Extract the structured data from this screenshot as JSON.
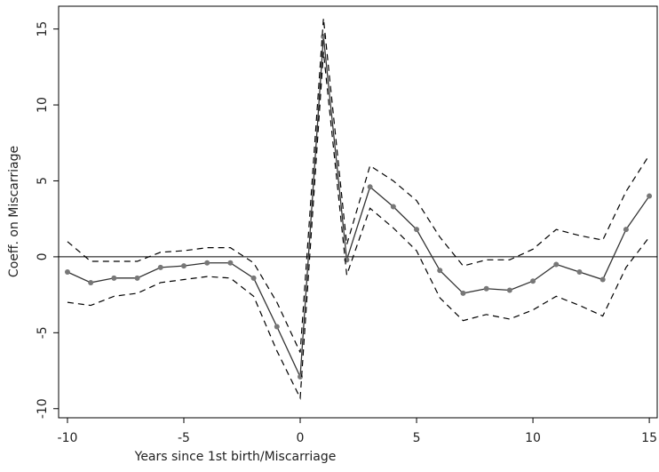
{
  "chart_data": {
    "type": "line",
    "xlabel": "Years since 1st birth/Miscarriage",
    "ylabel": "Coeff. on Miscarriage",
    "x": [
      -10,
      -9,
      -8,
      -7,
      -6,
      -5,
      -4,
      -3,
      -2,
      -1,
      0,
      1,
      2,
      3,
      4,
      5,
      6,
      7,
      8,
      9,
      10,
      11,
      12,
      13,
      14,
      15
    ],
    "series": [
      {
        "color": "#333333",
        "dash": false,
        "markers": true,
        "marker_color": "#777777",
        "values": [
          -1.0,
          -1.7,
          -1.4,
          -1.4,
          -0.7,
          -0.6,
          -0.4,
          -0.4,
          -1.4,
          -4.6,
          -7.9,
          14.5,
          -0.2,
          4.6,
          3.3,
          1.8,
          -0.9,
          -2.4,
          -2.1,
          -2.2,
          -1.6,
          -0.5,
          -1.0,
          -1.5,
          1.8,
          4.0
        ]
      },
      {
        "color": "#000000",
        "dash": true,
        "markers": false,
        "values": [
          1.0,
          -0.3,
          -0.3,
          -0.3,
          0.3,
          0.4,
          0.6,
          0.6,
          -0.4,
          -3.0,
          -6.3,
          15.7,
          0.8,
          6.0,
          5.0,
          3.7,
          1.3,
          -0.6,
          -0.2,
          -0.2,
          0.5,
          1.8,
          1.4,
          1.1,
          4.3,
          6.7
        ]
      },
      {
        "color": "#000000",
        "dash": true,
        "markers": false,
        "values": [
          -3.0,
          -3.2,
          -2.6,
          -2.4,
          -1.7,
          -1.5,
          -1.3,
          -1.4,
          -2.6,
          -6.2,
          -9.3,
          13.5,
          -1.2,
          3.2,
          1.9,
          0.4,
          -2.7,
          -4.2,
          -3.8,
          -4.1,
          -3.5,
          -2.6,
          -3.2,
          -3.9,
          -0.7,
          1.3
        ]
      }
    ],
    "reference_line": 0,
    "xlim": [
      -10.38,
      15.34
    ],
    "ylim": [
      -10.6,
      16.5
    ],
    "xticks": [
      -10,
      -5,
      0,
      5,
      10,
      15
    ],
    "yticks": [
      -10,
      -5,
      0,
      5,
      10,
      15
    ]
  }
}
